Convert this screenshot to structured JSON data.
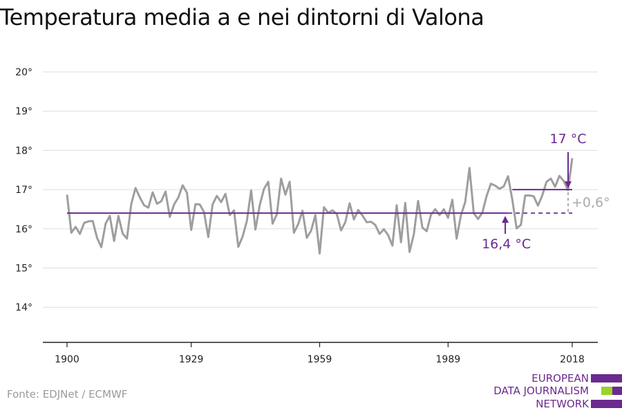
{
  "title": "Temperatura media a e nei dintorni di Valona",
  "source": "Fonte: EDJNet / ECMWF",
  "logo": {
    "lines": [
      "EUROPEAN",
      "DATA JOURNALISM",
      "NETWORK"
    ],
    "colors": [
      "#6b2a8f",
      "#9ad32a",
      "#6b2a8f"
    ]
  },
  "colors": {
    "line": "#9e9e9e",
    "accent": "#6b2a8f",
    "grid": "#dddddd"
  },
  "chart_data": {
    "type": "line",
    "x_start": 1900,
    "x_end": 2018,
    "xticks": [
      1900,
      1929,
      1959,
      1989,
      2018
    ],
    "ylim": [
      13,
      20
    ],
    "yticks": [
      {
        "v": 14,
        "label": "14°"
      },
      {
        "v": 15,
        "label": "15°"
      },
      {
        "v": 16,
        "label": "16°"
      },
      {
        "v": 17,
        "label": "17°"
      },
      {
        "v": 18,
        "label": "18°"
      },
      {
        "v": 19,
        "label": "19°"
      },
      {
        "v": 20,
        "label": "20°"
      }
    ],
    "values": [
      16.87,
      15.9,
      16.05,
      15.87,
      16.15,
      16.19,
      16.2,
      15.77,
      15.53,
      16.13,
      16.33,
      15.69,
      16.33,
      15.88,
      15.75,
      16.63,
      17.04,
      16.8,
      16.6,
      16.54,
      16.93,
      16.64,
      16.7,
      16.95,
      16.3,
      16.62,
      16.8,
      17.11,
      16.92,
      15.97,
      16.63,
      16.62,
      16.43,
      15.79,
      16.62,
      16.84,
      16.68,
      16.89,
      16.35,
      16.47,
      15.54,
      15.8,
      16.2,
      16.98,
      15.98,
      16.6,
      17.02,
      17.2,
      16.13,
      16.37,
      17.28,
      16.87,
      17.2,
      15.9,
      16.12,
      16.46,
      15.77,
      15.95,
      16.35,
      15.37,
      16.55,
      16.41,
      16.47,
      16.38,
      15.96,
      16.17,
      16.65,
      16.24,
      16.48,
      16.34,
      16.17,
      16.18,
      16.1,
      15.87,
      15.99,
      15.84,
      15.57,
      16.6,
      15.66,
      16.66,
      15.41,
      15.86,
      16.71,
      16.03,
      15.94,
      16.36,
      16.5,
      16.35,
      16.5,
      16.28,
      16.74,
      15.75,
      16.34,
      16.68,
      17.55,
      16.4,
      16.25,
      16.41,
      16.84,
      17.15,
      17.1,
      17.02,
      17.08,
      17.34,
      16.74,
      16.01,
      16.1,
      16.85,
      16.85,
      16.83,
      16.59,
      16.85,
      17.2,
      17.28,
      17.07,
      17.35,
      17.22,
      16.99,
      17.8
    ],
    "baseline": {
      "value": 16.4,
      "from": 1900,
      "to": 2003,
      "label": "16,4 °C"
    },
    "recent": {
      "value": 17.0,
      "from": 2004,
      "to": 2018,
      "label": "17 °C"
    },
    "change_label": "+0,6°"
  }
}
